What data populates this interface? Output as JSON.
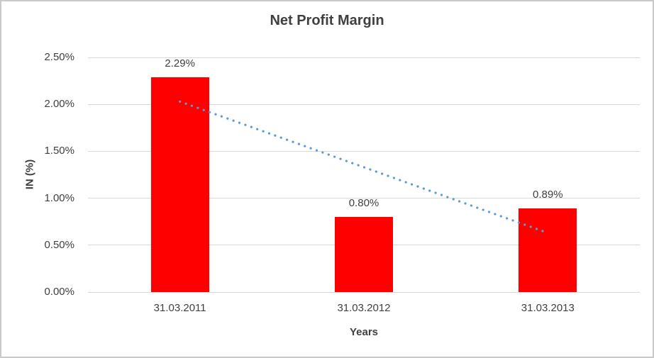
{
  "chart_data": {
    "type": "bar",
    "title": "Net Profit Margin",
    "xlabel": "Years",
    "ylabel": "IN (%)",
    "categories": [
      "31.03.2011",
      "31.03.2012",
      "31.03.2013"
    ],
    "values": [
      2.29,
      0.8,
      0.89
    ],
    "data_labels": [
      "2.29%",
      "0.80%",
      "0.89%"
    ],
    "ylim": [
      0,
      2.5
    ],
    "yticks": [
      {
        "label": "0.00%",
        "value": 0
      },
      {
        "label": "0.50%",
        "value": 0.5
      },
      {
        "label": "1.00%",
        "value": 1.0
      },
      {
        "label": "1.50%",
        "value": 1.5
      },
      {
        "label": "2.00%",
        "value": 2.0
      },
      {
        "label": "2.50%",
        "value": 2.5
      }
    ],
    "grid": true,
    "legend": "none",
    "trendline": {
      "type": "linear",
      "style": "dotted",
      "start_value": 2.03,
      "end_value": 0.63
    },
    "colors": {
      "bar": "#ff0000",
      "trendline": "#5b9bd5",
      "gridline": "#d9d9d9",
      "text": "#404040",
      "chart_border": "#c9c9c9"
    }
  }
}
